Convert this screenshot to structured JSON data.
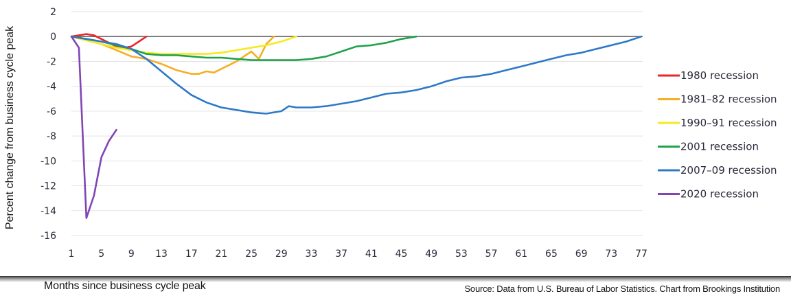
{
  "chart_data": {
    "type": "line",
    "title": "",
    "xlabel": "Months since business cycle peak",
    "ylabel": "Percent change from business cycle peak",
    "xlim": [
      1,
      77
    ],
    "ylim": [
      -16,
      2
    ],
    "xticks": [
      "1",
      "5",
      "9",
      "13",
      "17",
      "21",
      "25",
      "29",
      "33",
      "37",
      "41",
      "45",
      "49",
      "53",
      "57",
      "61",
      "65",
      "69",
      "73",
      "77"
    ],
    "yticks": [
      "2",
      "0",
      "-2",
      "-4",
      "-6",
      "-8",
      "-10",
      "-12",
      "-14",
      "-16"
    ],
    "grid": true,
    "legend_position": "right",
    "series": [
      {
        "name": "1980 recession",
        "color": "#e8262a",
        "x": [
          1,
          2,
          3,
          4,
          5,
          6,
          7,
          8,
          9,
          10,
          11
        ],
        "y": [
          0,
          0.1,
          0.2,
          0.1,
          -0.2,
          -0.5,
          -0.8,
          -0.9,
          -0.8,
          -0.4,
          0
        ]
      },
      {
        "name": "1981–82 recession",
        "color": "#f6ae23",
        "x": [
          1,
          3,
          5,
          7,
          9,
          11,
          13,
          15,
          17,
          18,
          19,
          20,
          21,
          22,
          23,
          24,
          25,
          26,
          27,
          28
        ],
        "y": [
          0,
          -0.3,
          -0.6,
          -1.1,
          -1.6,
          -1.8,
          -2.2,
          -2.7,
          -3.0,
          -3.0,
          -2.8,
          -2.9,
          -2.6,
          -2.3,
          -2.0,
          -1.6,
          -1.2,
          -1.8,
          -0.6,
          0
        ]
      },
      {
        "name": "1990–91 recession",
        "color": "#f5ea1e",
        "x": [
          1,
          3,
          5,
          7,
          9,
          11,
          13,
          15,
          17,
          19,
          21,
          23,
          25,
          27,
          29,
          31
        ],
        "y": [
          0,
          -0.3,
          -0.6,
          -0.9,
          -1.1,
          -1.3,
          -1.4,
          -1.4,
          -1.4,
          -1.4,
          -1.3,
          -1.1,
          -0.9,
          -0.7,
          -0.4,
          0
        ]
      },
      {
        "name": "2001 recession",
        "color": "#1fa24a",
        "x": [
          1,
          3,
          5,
          7,
          9,
          11,
          13,
          15,
          17,
          19,
          21,
          23,
          25,
          27,
          29,
          31,
          33,
          35,
          37,
          39,
          41,
          43,
          45,
          47
        ],
        "y": [
          0,
          -0.2,
          -0.4,
          -0.7,
          -1.0,
          -1.4,
          -1.5,
          -1.5,
          -1.6,
          -1.7,
          -1.7,
          -1.8,
          -1.9,
          -1.9,
          -1.9,
          -1.9,
          -1.8,
          -1.6,
          -1.2,
          -0.8,
          -0.7,
          -0.5,
          -0.2,
          0
        ]
      },
      {
        "name": "2007–09 recession",
        "color": "#2e78c8",
        "x": [
          1,
          3,
          5,
          7,
          9,
          11,
          13,
          15,
          17,
          19,
          21,
          23,
          25,
          27,
          29,
          30,
          31,
          33,
          35,
          37,
          39,
          41,
          43,
          45,
          47,
          49,
          51,
          53,
          55,
          57,
          59,
          61,
          63,
          65,
          67,
          69,
          71,
          73,
          75,
          77
        ],
        "y": [
          0,
          -0.2,
          -0.4,
          -0.6,
          -1.0,
          -1.8,
          -2.8,
          -3.8,
          -4.7,
          -5.3,
          -5.7,
          -5.9,
          -6.1,
          -6.2,
          -6.0,
          -5.6,
          -5.7,
          -5.7,
          -5.6,
          -5.4,
          -5.2,
          -4.9,
          -4.6,
          -4.5,
          -4.3,
          -4.0,
          -3.6,
          -3.3,
          -3.2,
          -3.0,
          -2.7,
          -2.4,
          -2.1,
          -1.8,
          -1.5,
          -1.3,
          -1.0,
          -0.7,
          -0.4,
          0
        ]
      },
      {
        "name": "2020 recession",
        "color": "#8045b4",
        "x": [
          1,
          2,
          3,
          4,
          5,
          6,
          7
        ],
        "y": [
          0,
          -0.9,
          -14.6,
          -12.8,
          -9.7,
          -8.4,
          -7.5
        ]
      }
    ]
  },
  "footer": {
    "left": "Months since business cycle peak",
    "right": "Source: Data from U.S. Bureau of Labor Statistics. Chart from Brookings Institution"
  }
}
